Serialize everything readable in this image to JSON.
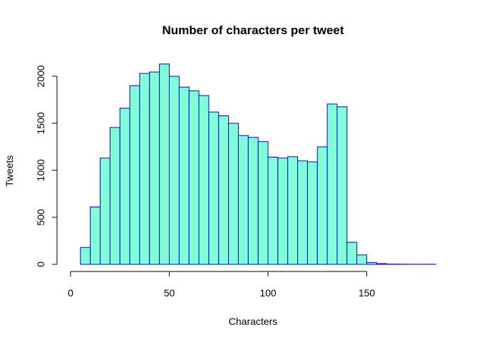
{
  "chart_data": {
    "type": "bar",
    "title": "Number of characters per tweet",
    "xlabel": "Characters",
    "ylabel": "Tweets",
    "xlim": [
      0,
      185
    ],
    "ylim": [
      0,
      2150
    ],
    "bin_width": 5,
    "bins_start": [
      0,
      5,
      10,
      15,
      20,
      25,
      30,
      35,
      40,
      45,
      50,
      55,
      60,
      65,
      70,
      75,
      80,
      85,
      90,
      95,
      100,
      105,
      110,
      115,
      120,
      125,
      130,
      135,
      140,
      145,
      150,
      155,
      160,
      165,
      170,
      175,
      180
    ],
    "values": [
      0,
      180,
      610,
      1130,
      1455,
      1660,
      1900,
      2030,
      2045,
      2130,
      2000,
      1885,
      1845,
      1795,
      1620,
      1580,
      1500,
      1370,
      1350,
      1305,
      1140,
      1130,
      1145,
      1100,
      1090,
      1250,
      1705,
      1675,
      235,
      100,
      20,
      8,
      3,
      2,
      1,
      1,
      1
    ],
    "x_ticks": [
      0,
      50,
      100,
      150
    ],
    "y_ticks": [
      0,
      500,
      1000,
      1500,
      2000
    ],
    "colors": {
      "fill": "#7FFFD4",
      "border": "#0000EE"
    },
    "grid": false,
    "legend": "none"
  }
}
